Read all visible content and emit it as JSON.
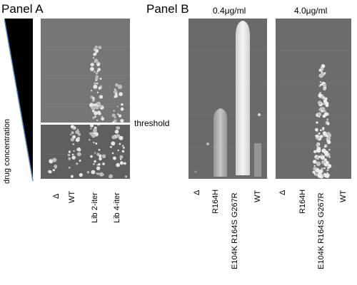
{
  "panel_a": {
    "title": "Panel A",
    "y_axis_label": "drug concentration",
    "threshold_label": "threshold",
    "lanes": [
      "Δ",
      "WT",
      "Lib 2-iter",
      "Lib 4-iter"
    ],
    "colors": {
      "plate_top": "#7a7a7a",
      "plate_bottom": "#5e5e5e",
      "wedge": "#000000",
      "wedge_edge": "#5b8fc4"
    }
  },
  "panel_b": {
    "title": "Panel B",
    "plates": [
      {
        "concentration": "0.4μg/ml",
        "lanes": [
          "Δ",
          "R164H",
          "E104K R164S G267R",
          "WT"
        ]
      },
      {
        "concentration": "4.0μg/ml",
        "lanes": [
          "Δ",
          "R164H",
          "E104K R164S G267R",
          "WT"
        ]
      }
    ],
    "colors": {
      "plate": "#666666",
      "growth": "#e8e8e8"
    }
  }
}
